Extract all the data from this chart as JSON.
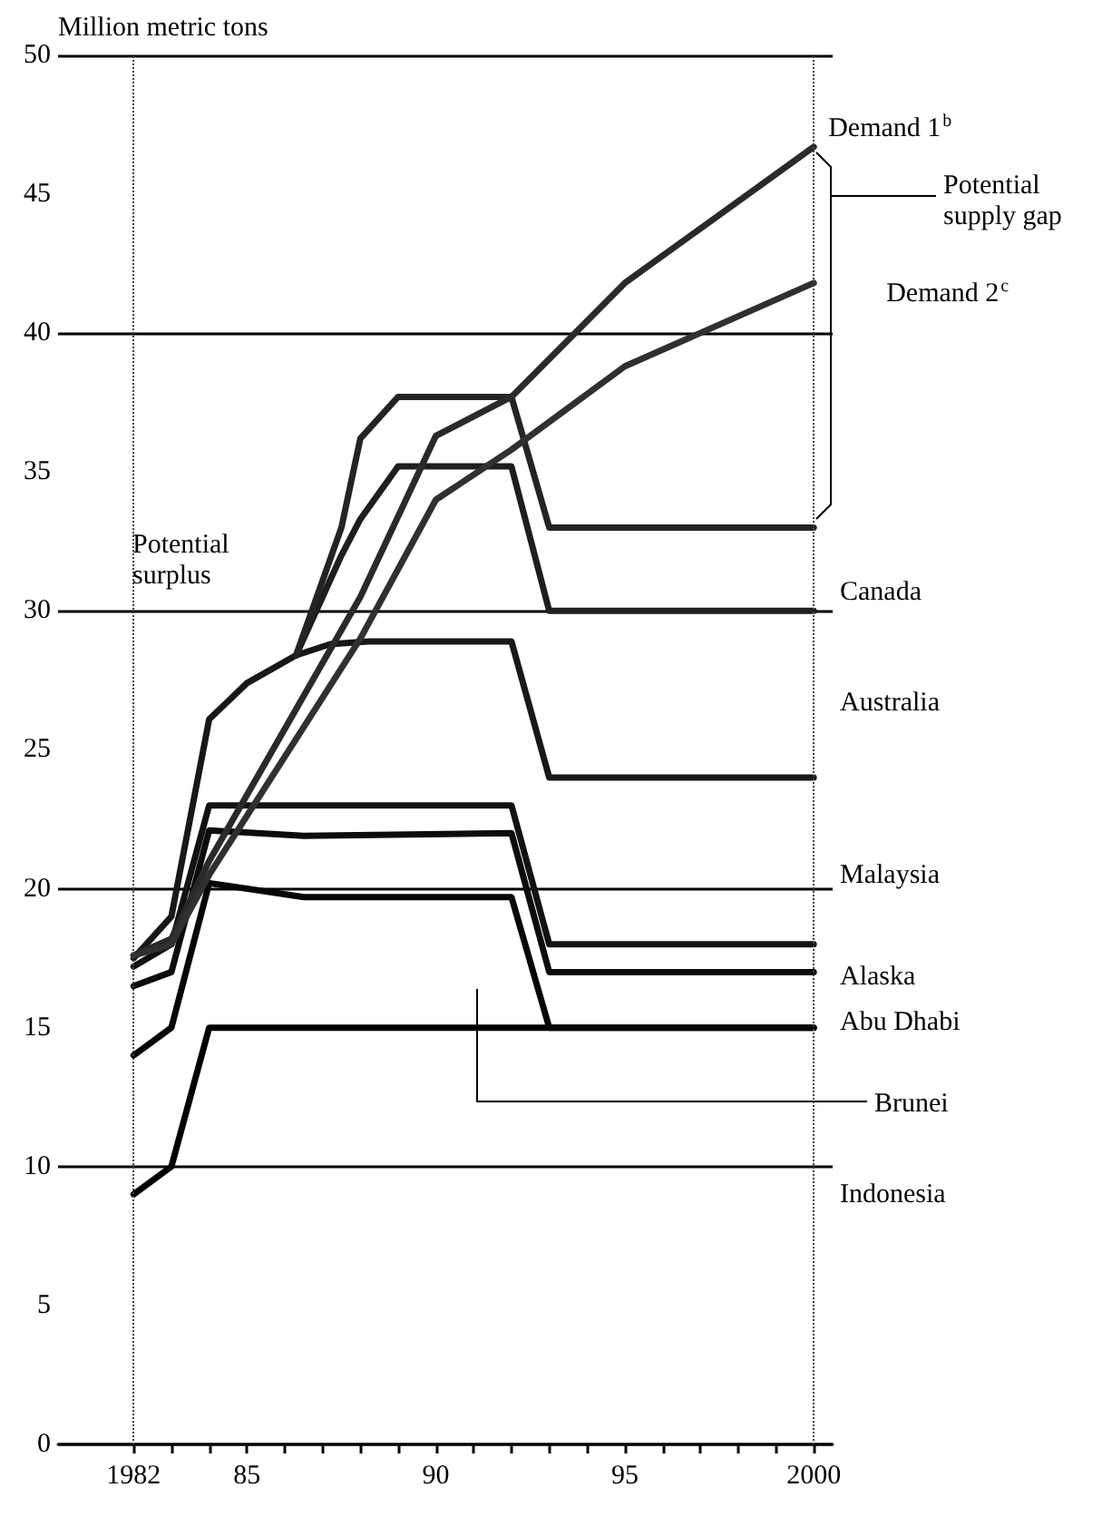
{
  "chart_data": {
    "type": "line",
    "ylabel": "Million metric tons",
    "xlim": [
      1980,
      2000.5
    ],
    "ylim": [
      0,
      50
    ],
    "xticks": [
      1982,
      {
        "value": 1983,
        "label": null
      },
      {
        "value": 1984,
        "label": null
      },
      {
        "value": 1985,
        "label": "85"
      },
      {
        "value": 1986,
        "label": null
      },
      {
        "value": 1987,
        "label": null
      },
      {
        "value": 1988,
        "label": null
      },
      {
        "value": 1989,
        "label": null
      },
      {
        "value": 1990,
        "label": "90"
      },
      {
        "value": 1991,
        "label": null
      },
      {
        "value": 1992,
        "label": null
      },
      {
        "value": 1993,
        "label": null
      },
      {
        "value": 1994,
        "label": null
      },
      {
        "value": 1995,
        "label": "95"
      },
      {
        "value": 1996,
        "label": null
      },
      {
        "value": 1997,
        "label": null
      },
      {
        "value": 1998,
        "label": null
      },
      {
        "value": 1999,
        "label": null
      },
      2000
    ],
    "yticks": [
      0,
      5,
      10,
      15,
      20,
      25,
      30,
      35,
      40,
      45,
      50
    ],
    "grid": "y",
    "legend": false,
    "marker": "none",
    "line_style": "solid",
    "series": [
      {
        "color": "#000000",
        "x": [
          1982,
          1983,
          1984,
          2000
        ],
        "values": [
          9,
          10,
          15,
          15
        ]
      },
      {
        "color": "#060606",
        "x": [
          1982,
          1983,
          1984,
          1986.5,
          1992,
          1993,
          2000
        ],
        "values": [
          14,
          15,
          20.2,
          19.7,
          19.7,
          15,
          15
        ]
      },
      {
        "color": "#0c0c0c",
        "x": [
          1982,
          1983,
          1984,
          1986.5,
          1992,
          1993,
          2000
        ],
        "values": [
          16.5,
          17,
          22.1,
          21.9,
          22,
          17,
          17
        ]
      },
      {
        "color": "#121212",
        "x": [
          1982,
          1983,
          1984,
          1992,
          1993,
          2000
        ],
        "values": [
          17.2,
          18,
          23,
          23,
          18,
          18
        ]
      },
      {
        "color": "#181818",
        "x": [
          1982,
          1983,
          1984,
          1985,
          1986.3,
          1987.2,
          1988.2,
          1992,
          1993,
          2000
        ],
        "values": [
          17.5,
          19,
          26.1,
          27.4,
          28.4,
          28.8,
          28.9,
          28.9,
          24,
          24
        ]
      },
      {
        "color": "#1e1e1e",
        "x": [
          1986.3,
          1987.5,
          1988,
          1989,
          1992,
          1993,
          2000
        ],
        "values": [
          28.4,
          32,
          33.3,
          35.2,
          35.2,
          30,
          30
        ]
      },
      {
        "color": "#242424",
        "x": [
          1986.3,
          1987.5,
          1988,
          1989,
          1992,
          1993,
          2000
        ],
        "values": [
          28.4,
          33,
          36.2,
          37.7,
          37.7,
          33,
          33
        ]
      },
      {
        "name": "Demand 1$^{b}$",
        "color": "#2a2a2a",
        "x": [
          1982,
          1983,
          1984,
          1988,
          1990,
          1992,
          1995,
          2000
        ],
        "values": [
          17.6,
          18.2,
          21,
          30.5,
          36.3,
          37.7,
          41.8,
          46.7
        ]
      },
      {
        "name": "Demand 2$^{c}$",
        "color": "#303030",
        "x": [
          1982,
          1983,
          1984,
          1988,
          1990,
          1992,
          1995,
          2000
        ],
        "values": [
          17.6,
          18,
          20.5,
          29,
          34,
          35.8,
          38.8,
          41.8
        ]
      }
    ],
    "ref_lines": [
      {
        "axis": "x",
        "value": 1982,
        "line_style": "dotted"
      },
      {
        "axis": "x",
        "value": 2000,
        "line_style": "dotted"
      }
    ],
    "annotations": [
      "Potential supply gap",
      "Potential surplus",
      "Canada",
      "Australia",
      "Malaysia",
      "Alaska",
      "Abu Dhabi",
      "Brunei",
      "Indonesia"
    ]
  }
}
